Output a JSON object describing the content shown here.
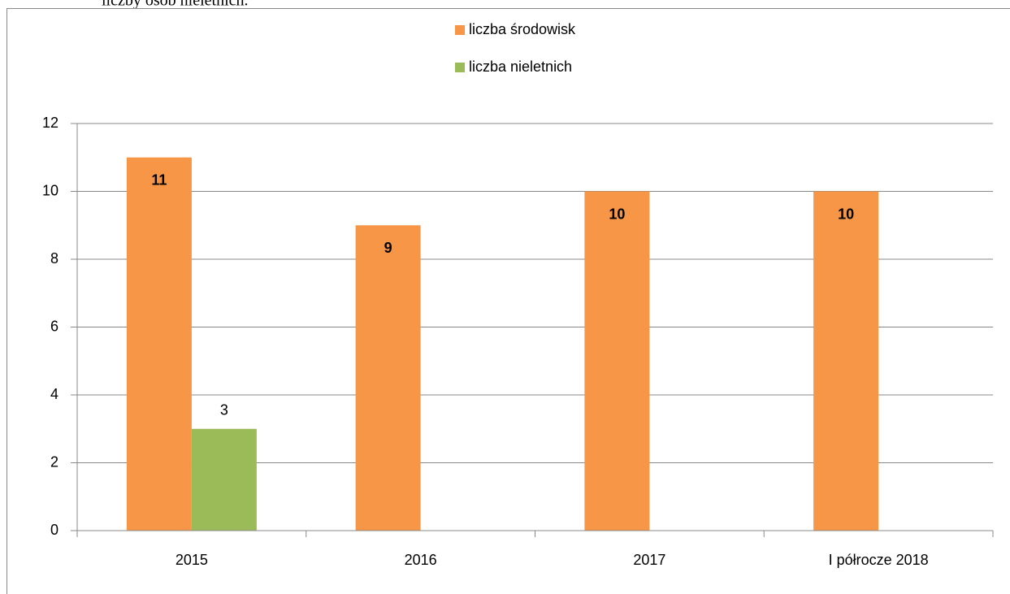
{
  "preceding_text": "liczby osób nieletnich.",
  "chart_data": {
    "type": "bar",
    "categories": [
      "2015",
      "2016",
      "2017",
      "I półrocze 2018"
    ],
    "series": [
      {
        "name": "liczba środowisk",
        "color": "#f79646",
        "values": [
          11,
          9,
          10,
          10
        ]
      },
      {
        "name": "liczba nieletnich",
        "color": "#9bbb59",
        "values": [
          3,
          null,
          null,
          null
        ]
      }
    ],
    "ylim": [
      0,
      12
    ],
    "yticks": [
      0,
      2,
      4,
      6,
      8,
      10,
      12
    ],
    "grid": true,
    "legend": "top"
  }
}
